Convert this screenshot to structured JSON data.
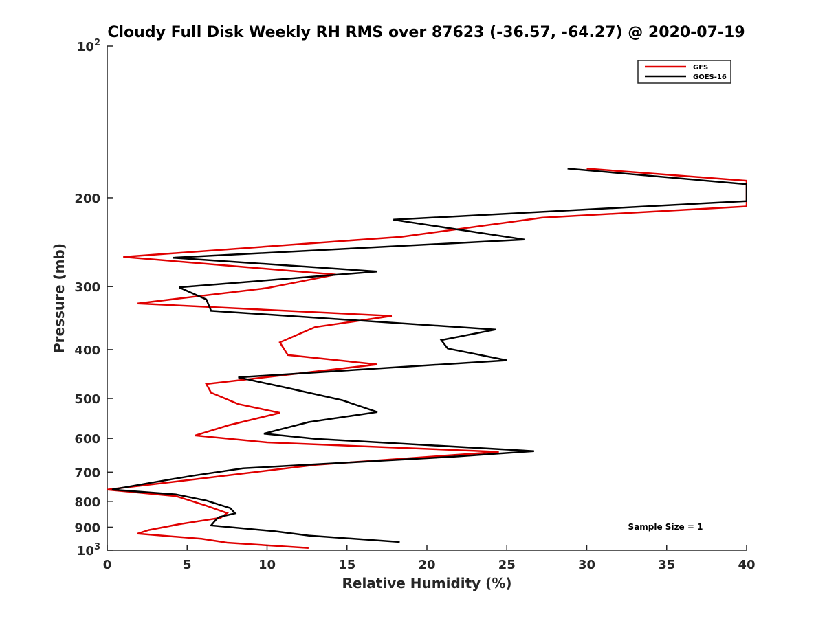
{
  "chart_data": {
    "type": "line",
    "title": "Cloudy Full Disk Weekly RH RMS over 87623 (-36.57, -64.27) @ 2020-07-19",
    "xlabel": "Relative Humidity (%)",
    "ylabel": "Pressure (mb)",
    "xlim": [
      0,
      40
    ],
    "ylim": [
      100,
      1000
    ],
    "yscale": "log",
    "y_reversed": true,
    "grid": false,
    "legend_placement": "top-right",
    "x_ticks": [
      0,
      5,
      10,
      15,
      20,
      25,
      30,
      35,
      40
    ],
    "x_tick_labels": [
      "0",
      "5",
      "10",
      "15",
      "20",
      "25",
      "30",
      "35",
      "40"
    ],
    "y_ticks": [
      100,
      200,
      300,
      400,
      500,
      600,
      700,
      800,
      900,
      1000
    ],
    "y_tick_labels": [
      {
        "base": "10",
        "exp": "2"
      },
      {
        "base": "200",
        "exp": ""
      },
      {
        "base": "300",
        "exp": ""
      },
      {
        "base": "400",
        "exp": ""
      },
      {
        "base": "500",
        "exp": ""
      },
      {
        "base": "600",
        "exp": ""
      },
      {
        "base": "700",
        "exp": ""
      },
      {
        "base": "800",
        "exp": ""
      },
      {
        "base": "900",
        "exp": ""
      },
      {
        "base": "10",
        "exp": "3"
      }
    ],
    "series": [
      {
        "name": "GFS",
        "color": "#e00000",
        "points": [
          [
            30.0,
            175
          ],
          [
            40.0,
            185
          ],
          [
            40.0,
            208
          ],
          [
            27.2,
            219
          ],
          [
            18.4,
            239
          ],
          [
            1.0,
            262
          ],
          [
            14.3,
            284
          ],
          [
            10.0,
            302
          ],
          [
            1.9,
            324
          ],
          [
            17.8,
            343
          ],
          [
            13.0,
            361
          ],
          [
            10.8,
            387
          ],
          [
            11.3,
            410
          ],
          [
            16.9,
            428
          ],
          [
            6.2,
            468
          ],
          [
            6.5,
            487
          ],
          [
            8.2,
            513
          ],
          [
            10.8,
            534
          ],
          [
            7.6,
            565
          ],
          [
            5.5,
            592
          ],
          [
            10.0,
            611
          ],
          [
            24.5,
            638
          ],
          [
            13.0,
            677
          ],
          [
            6.2,
            719
          ],
          [
            0.0,
            758
          ],
          [
            4.3,
            781
          ],
          [
            6.2,
            816
          ],
          [
            7.5,
            844
          ],
          [
            7.1,
            862
          ],
          [
            4.5,
            888
          ],
          [
            2.6,
            912
          ],
          [
            1.9,
            927
          ],
          [
            5.9,
            949
          ],
          [
            7.5,
            966
          ],
          [
            12.6,
            990
          ]
        ]
      },
      {
        "name": "GOES-16",
        "color": "#000000",
        "points": [
          [
            28.8,
            175
          ],
          [
            40.0,
            188
          ],
          [
            40.0,
            203
          ],
          [
            17.9,
            221
          ],
          [
            26.1,
            242
          ],
          [
            4.1,
            263
          ],
          [
            16.9,
            280
          ],
          [
            4.5,
            301
          ],
          [
            6.2,
            318
          ],
          [
            6.5,
            335
          ],
          [
            24.3,
            365
          ],
          [
            20.9,
            383
          ],
          [
            21.3,
            398
          ],
          [
            25.0,
            420
          ],
          [
            8.2,
            454
          ],
          [
            11.2,
            476
          ],
          [
            14.7,
            504
          ],
          [
            16.9,
            532
          ],
          [
            12.6,
            557
          ],
          [
            9.8,
            587
          ],
          [
            13.0,
            601
          ],
          [
            26.7,
            636
          ],
          [
            21.7,
            652
          ],
          [
            8.5,
            688
          ],
          [
            5.4,
            711
          ],
          [
            2.6,
            736
          ],
          [
            0.3,
            758
          ],
          [
            4.3,
            775
          ],
          [
            6.2,
            797
          ],
          [
            7.7,
            825
          ],
          [
            8.0,
            845
          ],
          [
            7.0,
            859
          ],
          [
            6.8,
            870
          ],
          [
            6.5,
            893
          ],
          [
            10.5,
            917
          ],
          [
            12.6,
            935
          ],
          [
            18.3,
            963
          ]
        ]
      }
    ],
    "annotation": "Sample Size = 1"
  }
}
